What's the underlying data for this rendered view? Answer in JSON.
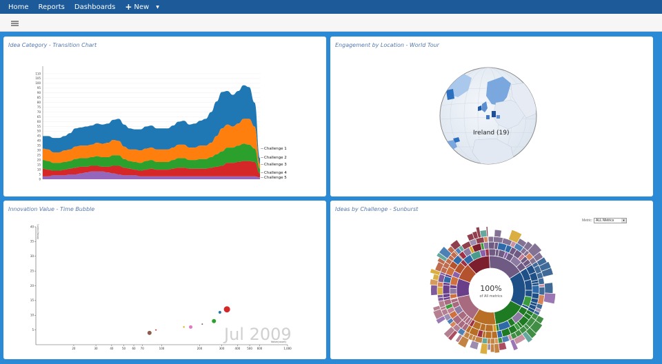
{
  "nav": {
    "items": [
      "Home",
      "Reports",
      "Dashboards"
    ],
    "new_label": "New"
  },
  "panels": {
    "transition": {
      "title": "Idea Category - Transition Chart"
    },
    "world": {
      "title": "Engagement by Location - World Tour",
      "label": "Ireland (19)"
    },
    "bubble": {
      "title": "Innovation Value - Time Bubble",
      "year_label": "Jul 2009"
    },
    "sunburst": {
      "title": "Ideas by Challenge - Sunburst",
      "metric_label": "Metric:",
      "metric_value": "ALL Metrics",
      "center_value": "100%",
      "center_sub": "of All metrics"
    }
  },
  "colors": {
    "nav_bg": "#1c5a9a",
    "page_bg": "#2b8ad6",
    "challenge": [
      "#1f77b4",
      "#ff7f0e",
      "#2ca02c",
      "#d62728",
      "#9467bd"
    ]
  },
  "chart_data": [
    {
      "type": "area",
      "stacked": true,
      "x": [
        0,
        1,
        2,
        3,
        4,
        5,
        6,
        7,
        8,
        9,
        10,
        11,
        12,
        13,
        14,
        15,
        16,
        17,
        18,
        19,
        20,
        21,
        22,
        23,
        24,
        25,
        26,
        27,
        28,
        29,
        30,
        31,
        32,
        33,
        34,
        35,
        36,
        37,
        38,
        39,
        40
      ],
      "ylim": [
        0,
        115
      ],
      "yticks": [
        0,
        5,
        10,
        15,
        20,
        25,
        30,
        35,
        40,
        45,
        50,
        55,
        60,
        65,
        70,
        75,
        80,
        85,
        90,
        95,
        100,
        105,
        110
      ],
      "series": [
        {
          "name": "Challenge 5",
          "values": [
            3,
            3,
            4,
            4,
            4,
            5,
            5,
            6,
            7,
            8,
            8,
            8,
            7,
            6,
            5,
            4,
            4,
            4,
            3,
            3,
            3,
            3,
            3,
            3,
            3,
            3,
            3,
            3,
            3,
            3,
            3,
            3,
            3,
            3,
            3,
            3,
            3,
            3,
            3,
            3,
            2
          ]
        },
        {
          "name": "Challenge 4",
          "values": [
            8,
            7,
            5,
            5,
            6,
            6,
            7,
            7,
            6,
            6,
            6,
            5,
            6,
            8,
            9,
            8,
            7,
            6,
            6,
            7,
            8,
            7,
            7,
            7,
            8,
            9,
            9,
            8,
            8,
            8,
            8,
            9,
            10,
            11,
            14,
            14,
            15,
            16,
            16,
            15,
            4
          ]
        },
        {
          "name": "Challenge 3",
          "values": [
            9,
            9,
            8,
            8,
            8,
            8,
            9,
            9,
            9,
            9,
            10,
            10,
            10,
            11,
            11,
            9,
            8,
            8,
            8,
            9,
            9,
            8,
            8,
            8,
            9,
            10,
            10,
            9,
            9,
            10,
            10,
            11,
            13,
            15,
            16,
            16,
            17,
            18,
            17,
            14,
            5
          ]
        },
        {
          "name": "Challenge 2",
          "values": [
            12,
            12,
            11,
            11,
            12,
            12,
            13,
            13,
            13,
            13,
            14,
            14,
            15,
            16,
            15,
            13,
            12,
            13,
            13,
            13,
            13,
            13,
            13,
            13,
            13,
            14,
            14,
            13,
            13,
            14,
            14,
            15,
            19,
            24,
            24,
            22,
            23,
            26,
            27,
            23,
            5
          ]
        },
        {
          "name": "Challenge 1",
          "values": [
            13,
            14,
            15,
            15,
            15,
            17,
            19,
            19,
            20,
            20,
            20,
            20,
            20,
            21,
            23,
            23,
            22,
            21,
            22,
            23,
            23,
            22,
            22,
            22,
            23,
            24,
            25,
            24,
            25,
            26,
            28,
            32,
            36,
            38,
            35,
            33,
            34,
            35,
            33,
            25,
            6
          ]
        }
      ]
    },
    {
      "type": "scatter",
      "xscale": "log",
      "xlim": [
        10,
        1000
      ],
      "ylim": [
        0,
        40
      ],
      "xticks": [
        20,
        30,
        40,
        50,
        60,
        70,
        100,
        200,
        300,
        400,
        500,
        600,
        1000
      ],
      "xtick_labels": [
        "20",
        "30",
        "40",
        "50",
        "60",
        "70",
        "100",
        "200",
        "300",
        "400",
        "500",
        "600",
        "1,000"
      ],
      "yticks": [
        5,
        10,
        15,
        20,
        25,
        30,
        35,
        40
      ],
      "xlabel": "Value(count)",
      "ylabel": "Ideas(count)",
      "points": [
        {
          "x": 80,
          "y": 4,
          "r": 3,
          "color": "#8d5c4c"
        },
        {
          "x": 90,
          "y": 5,
          "r": 1,
          "color": "#d62728"
        },
        {
          "x": 150,
          "y": 6,
          "r": 1.2,
          "color": "#e0b000"
        },
        {
          "x": 170,
          "y": 6,
          "r": 2.5,
          "color": "#e377c2"
        },
        {
          "x": 210,
          "y": 7,
          "r": 1,
          "color": "#8d5c4c"
        },
        {
          "x": 260,
          "y": 8,
          "r": 3,
          "color": "#2ca02c"
        },
        {
          "x": 290,
          "y": 11,
          "r": 2,
          "color": "#1f77b4"
        },
        {
          "x": 330,
          "y": 12,
          "r": 4.5,
          "color": "#d62728"
        }
      ]
    }
  ]
}
